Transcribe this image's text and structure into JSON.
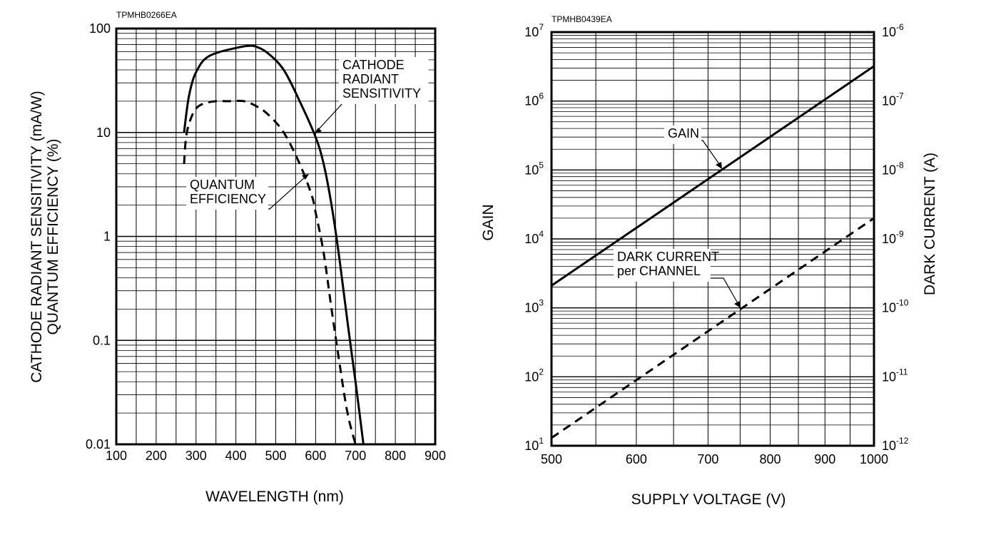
{
  "chart_data": [
    {
      "type": "line",
      "code": "TPMHB0266EA",
      "xlabel": "WAVELENGTH (nm)",
      "ylabel_lines": [
        "CATHODE RADIANT SENSITIVITY (mA/W)",
        "QUANTUM EFFICIENCY (%)"
      ],
      "xlim": [
        100,
        900
      ],
      "ylim": [
        0.01,
        100
      ],
      "yscale": "log",
      "xticks": [
        "100",
        "200",
        "300",
        "400",
        "500",
        "600",
        "700",
        "800",
        "900"
      ],
      "yticks": [
        "100",
        "10",
        "1",
        "0.1",
        "0.01"
      ],
      "grid": true,
      "series": [
        {
          "name": "CATHODE RADIANT SENSITIVITY",
          "label_lines": [
            "CATHODE",
            "RADIANT",
            "SENSITIVITY"
          ],
          "style": "solid",
          "x": [
            270,
            280,
            290,
            300,
            320,
            350,
            400,
            430,
            450,
            480,
            520,
            560,
            600,
            620,
            640,
            660,
            680,
            700,
            720
          ],
          "y": [
            10,
            20,
            30,
            38,
            50,
            58,
            65,
            68,
            67,
            58,
            40,
            20,
            9,
            5,
            2,
            0.6,
            0.15,
            0.04,
            0.01
          ]
        },
        {
          "name": "QUANTUM EFFICIENCY",
          "label_lines": [
            "QUANTUM",
            "EFFICIENCY"
          ],
          "style": "dashed",
          "x": [
            270,
            275,
            285,
            300,
            320,
            350,
            380,
            420,
            450,
            480,
            520,
            560,
            590,
            600,
            620,
            640,
            660,
            680,
            700
          ],
          "y": [
            5,
            9,
            13,
            17,
            19,
            20,
            20,
            20,
            18,
            15,
            10,
            5,
            2.5,
            1.7,
            0.7,
            0.2,
            0.06,
            0.02,
            0.01
          ]
        }
      ]
    },
    {
      "type": "line",
      "code": "TPMHB0439EA",
      "xlabel": "SUPPLY VOLTAGE (V)",
      "ylabel": "GAIN",
      "y2label": "DARK CURRENT (A)",
      "xlim": [
        500,
        1000
      ],
      "xscale": "log",
      "ylim": [
        10,
        10000000
      ],
      "yscale": "log",
      "y2lim": [
        1e-12,
        1e-06
      ],
      "xticks": [
        "500",
        "600",
        "700",
        "800",
        "900",
        "1000"
      ],
      "yticks": [
        {
          "base": "10",
          "exp": "1"
        },
        {
          "base": "10",
          "exp": "2"
        },
        {
          "base": "10",
          "exp": "3"
        },
        {
          "base": "10",
          "exp": "4"
        },
        {
          "base": "10",
          "exp": "5"
        },
        {
          "base": "10",
          "exp": "6"
        },
        {
          "base": "10",
          "exp": "7"
        }
      ],
      "y2ticks": [
        {
          "base": "10",
          "exp": "-12"
        },
        {
          "base": "10",
          "exp": "-11"
        },
        {
          "base": "10",
          "exp": "-10"
        },
        {
          "base": "10",
          "exp": "-9"
        },
        {
          "base": "10",
          "exp": "-8"
        },
        {
          "base": "10",
          "exp": "-7"
        },
        {
          "base": "10",
          "exp": "-6"
        }
      ],
      "grid": true,
      "series": [
        {
          "name": "GAIN",
          "label_lines": [
            "GAIN"
          ],
          "style": "solid",
          "axis": "left",
          "x": [
            500,
            1000
          ],
          "y": [
            2100,
            3200000
          ]
        },
        {
          "name": "DARK CURRENT per CHANNEL",
          "label_lines": [
            "DARK CURRENT",
            "per CHANNEL"
          ],
          "style": "dashed",
          "axis": "right",
          "x": [
            500,
            1000
          ],
          "y": [
            1.3e-12,
            2e-09
          ]
        }
      ]
    }
  ]
}
